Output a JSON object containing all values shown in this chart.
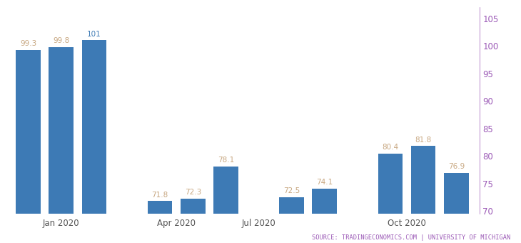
{
  "values": [
    99.3,
    99.8,
    101.0,
    71.8,
    72.3,
    78.1,
    72.5,
    74.1,
    80.4,
    81.8,
    76.9
  ],
  "x_positions": [
    0,
    1,
    2,
    4,
    5,
    6,
    8,
    9,
    11,
    12,
    13
  ],
  "bar_color": "#3d7ab5",
  "ylim": [
    69.5,
    107
  ],
  "yticks": [
    70,
    75,
    80,
    85,
    90,
    95,
    100,
    105
  ],
  "xtick_positions": [
    1,
    4.5,
    7.0,
    11.5
  ],
  "xtick_labels": [
    "Jan 2020",
    "Apr 2020",
    "Jul 2020",
    "Oct 2020"
  ],
  "source_text": "SOURCE: TRADINGECONOMICS.COM | UNIVERSITY OF MICHIGAN",
  "source_color": "#9b59b6",
  "label_color_tan": "#c8a882",
  "label_color_blue": "#3d7ab5",
  "grid_color": "#cccccc",
  "background_color": "#ffffff",
  "bar_width": 0.75,
  "xlim": [
    -0.7,
    13.7
  ]
}
